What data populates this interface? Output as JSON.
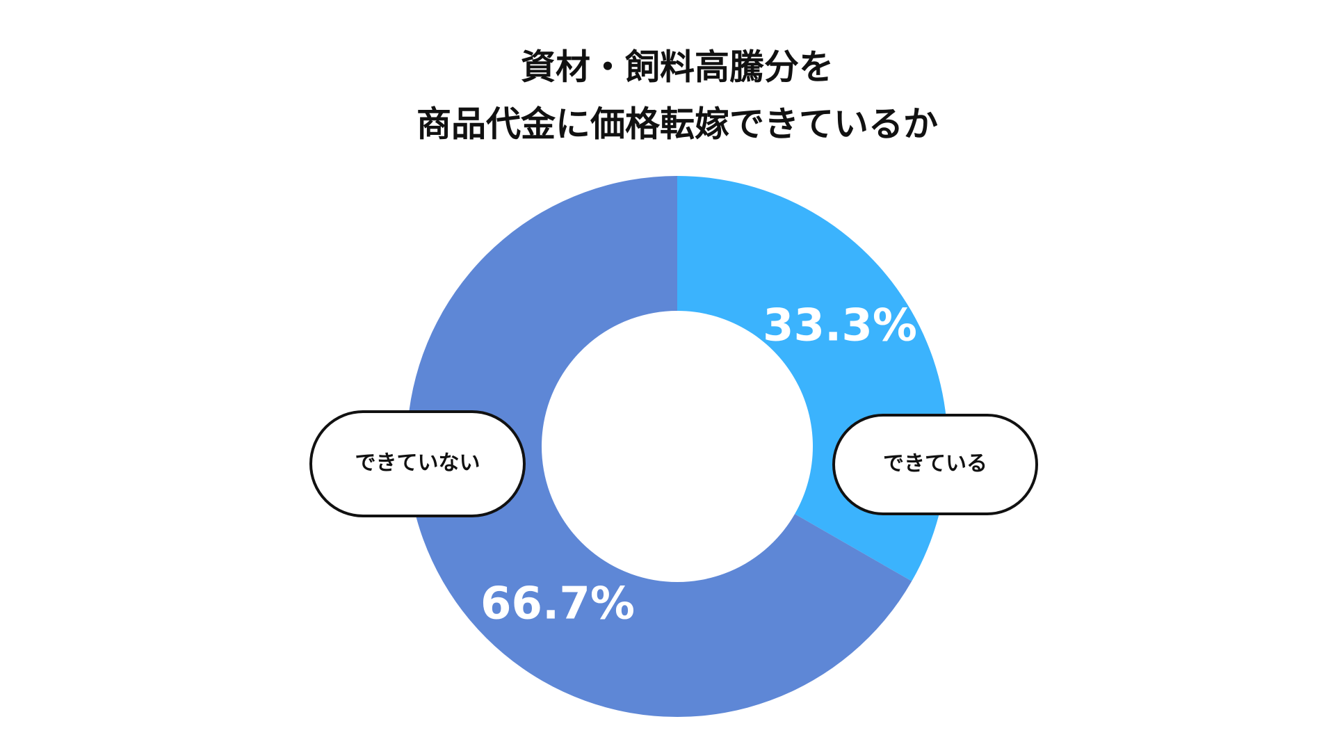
{
  "chart_data": {
    "type": "donut",
    "title": [
      "資材・飼料高騰分を",
      "商品代金に価格転嫁できているか"
    ],
    "categories": [
      "できている",
      "できていない"
    ],
    "values": [
      33.3,
      66.7
    ],
    "value_labels": [
      "33.3%",
      "66.7%"
    ],
    "colors": [
      "#3bb3fd",
      "#5e87d6"
    ]
  }
}
